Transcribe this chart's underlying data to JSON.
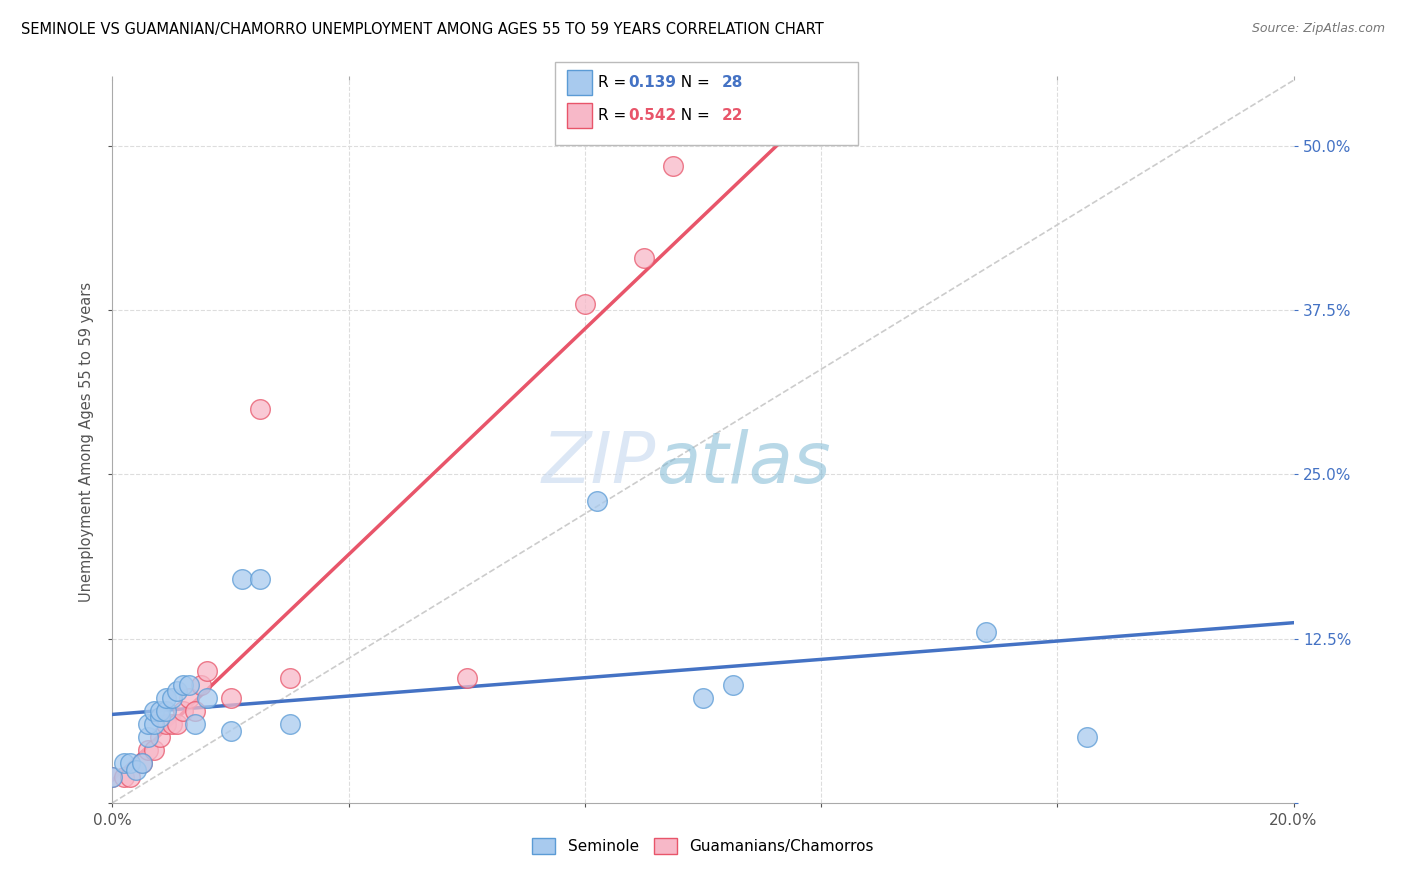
{
  "title": "SEMINOLE VS GUAMANIAN/CHAMORRO UNEMPLOYMENT AMONG AGES 55 TO 59 YEARS CORRELATION CHART",
  "source": "Source: ZipAtlas.com",
  "ylabel": "Unemployment Among Ages 55 to 59 years",
  "xlim": [
    0.0,
    0.2
  ],
  "ylim": [
    0.0,
    0.55
  ],
  "xticks": [
    0.0,
    0.04,
    0.08,
    0.12,
    0.16,
    0.2
  ],
  "yticks": [
    0.0,
    0.125,
    0.25,
    0.375,
    0.5
  ],
  "seminole_color": "#A8CAEE",
  "seminole_edge": "#5B9BD5",
  "guamanian_color": "#F7B8C8",
  "guamanian_edge": "#E8556A",
  "trend_seminole_color": "#4472C4",
  "trend_guamanian_color": "#E8556A",
  "diagonal_color": "#CCCCCC",
  "legend_R_seminole": "0.139",
  "legend_N_seminole": "28",
  "legend_R_guamanian": "0.542",
  "legend_N_guamanian": "22",
  "watermark_zip": "ZIP",
  "watermark_atlas": "atlas",
  "seminole_x": [
    0.0,
    0.002,
    0.003,
    0.004,
    0.005,
    0.006,
    0.006,
    0.007,
    0.007,
    0.008,
    0.008,
    0.009,
    0.009,
    0.01,
    0.011,
    0.012,
    0.013,
    0.014,
    0.016,
    0.02,
    0.022,
    0.025,
    0.03,
    0.082,
    0.1,
    0.105,
    0.148,
    0.165
  ],
  "seminole_y": [
    0.02,
    0.03,
    0.03,
    0.025,
    0.03,
    0.05,
    0.06,
    0.06,
    0.07,
    0.065,
    0.07,
    0.07,
    0.08,
    0.08,
    0.085,
    0.09,
    0.09,
    0.06,
    0.08,
    0.055,
    0.17,
    0.17,
    0.06,
    0.23,
    0.08,
    0.09,
    0.13,
    0.05
  ],
  "guamanian_x": [
    0.0,
    0.002,
    0.003,
    0.005,
    0.006,
    0.007,
    0.008,
    0.009,
    0.01,
    0.011,
    0.012,
    0.013,
    0.014,
    0.015,
    0.016,
    0.02,
    0.025,
    0.03,
    0.06,
    0.08,
    0.09,
    0.095
  ],
  "guamanian_y": [
    0.02,
    0.02,
    0.02,
    0.03,
    0.04,
    0.04,
    0.05,
    0.06,
    0.06,
    0.06,
    0.07,
    0.08,
    0.07,
    0.09,
    0.1,
    0.08,
    0.3,
    0.095,
    0.095,
    0.38,
    0.415,
    0.485
  ]
}
